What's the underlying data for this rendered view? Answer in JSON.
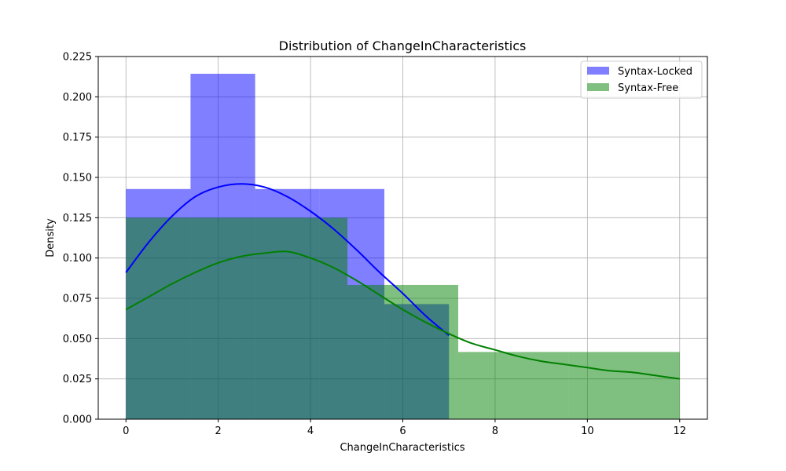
{
  "chart_data": {
    "type": "histogram",
    "title": "Distribution of ChangeInCharacteristics",
    "xlabel": "ChangeInCharacteristics",
    "ylabel": "Density",
    "xlim": [
      -0.6,
      12.6
    ],
    "ylim": [
      0,
      0.225
    ],
    "xticks": [
      "0",
      "2",
      "4",
      "6",
      "8",
      "10",
      "12"
    ],
    "yticks": [
      "0.000",
      "0.025",
      "0.050",
      "0.075",
      "0.100",
      "0.125",
      "0.150",
      "0.175",
      "0.200",
      "0.225"
    ],
    "grid": true,
    "legend_position": "top-right",
    "series": [
      {
        "name": "Syntax-Locked",
        "color": "#0000ff",
        "fill_opacity": 0.5,
        "bins": [
          {
            "x0": 0.0,
            "x1": 1.4,
            "density": 0.1428
          },
          {
            "x0": 1.4,
            "x1": 2.8,
            "density": 0.2143
          },
          {
            "x0": 2.8,
            "x1": 4.2,
            "density": 0.1428
          },
          {
            "x0": 4.2,
            "x1": 5.6,
            "density": 0.1428
          },
          {
            "x0": 5.6,
            "x1": 7.0,
            "density": 0.0714
          }
        ],
        "kde": {
          "x": [
            0,
            0.5,
            1,
            1.5,
            2,
            2.5,
            3,
            3.5,
            4,
            4.5,
            5,
            5.5,
            6,
            6.5,
            7
          ],
          "y": [
            0.091,
            0.11,
            0.126,
            0.138,
            0.144,
            0.146,
            0.144,
            0.138,
            0.129,
            0.118,
            0.105,
            0.091,
            0.078,
            0.064,
            0.052
          ]
        }
      },
      {
        "name": "Syntax-Free",
        "color": "#008000",
        "fill_opacity": 0.5,
        "bins": [
          {
            "x0": 0.0,
            "x1": 2.4,
            "density": 0.125
          },
          {
            "x0": 2.4,
            "x1": 4.8,
            "density": 0.125
          },
          {
            "x0": 4.8,
            "x1": 7.2,
            "density": 0.0833
          },
          {
            "x0": 7.2,
            "x1": 9.6,
            "density": 0.0417
          },
          {
            "x0": 9.6,
            "x1": 12.0,
            "density": 0.0417
          }
        ],
        "kde": {
          "x": [
            0,
            0.5,
            1,
            1.5,
            2,
            2.5,
            3,
            3.5,
            4,
            4.5,
            5,
            5.5,
            6,
            6.5,
            7,
            7.5,
            8,
            8.5,
            9,
            9.5,
            10,
            10.5,
            11,
            11.5,
            12
          ],
          "y": [
            0.068,
            0.076,
            0.084,
            0.091,
            0.097,
            0.101,
            0.103,
            0.104,
            0.1,
            0.094,
            0.086,
            0.077,
            0.068,
            0.06,
            0.053,
            0.047,
            0.043,
            0.039,
            0.036,
            0.034,
            0.032,
            0.03,
            0.029,
            0.027,
            0.025
          ]
        }
      }
    ]
  }
}
